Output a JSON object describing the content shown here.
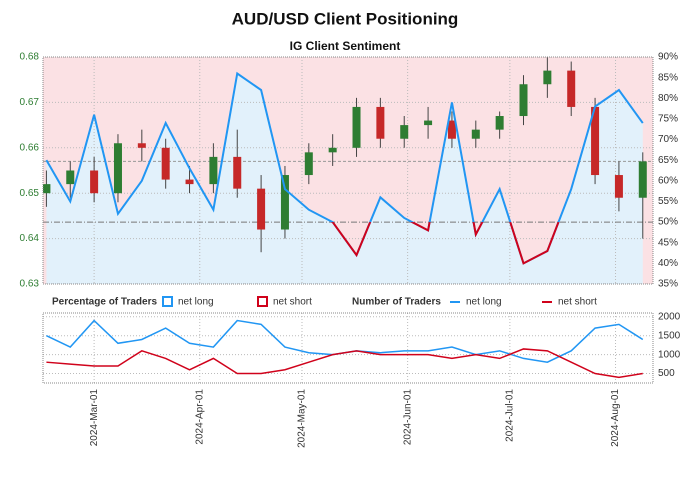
{
  "title": "AUD/USD Client Positioning",
  "chart_data": [
    {
      "type": "candlestick",
      "subtitle": "IG Client Sentiment",
      "x": [
        "2024-02-16",
        "2024-02-23",
        "2024-03-01",
        "2024-03-08",
        "2024-03-15",
        "2024-03-22",
        "2024-03-29",
        "2024-04-05",
        "2024-04-12",
        "2024-04-19",
        "2024-04-26",
        "2024-05-03",
        "2024-05-10",
        "2024-05-17",
        "2024-05-24",
        "2024-05-31",
        "2024-06-07",
        "2024-06-14",
        "2024-06-21",
        "2024-06-28",
        "2024-07-05",
        "2024-07-12",
        "2024-07-19",
        "2024-07-26",
        "2024-08-02",
        "2024-08-09"
      ],
      "open": [
        0.65,
        0.652,
        0.655,
        0.65,
        0.661,
        0.66,
        0.653,
        0.652,
        0.658,
        0.651,
        0.642,
        0.654,
        0.659,
        0.66,
        0.669,
        0.662,
        0.665,
        0.666,
        0.662,
        0.664,
        0.667,
        0.674,
        0.677,
        0.669,
        0.654,
        0.649
      ],
      "high": [
        0.655,
        0.657,
        0.658,
        0.663,
        0.664,
        0.662,
        0.656,
        0.661,
        0.664,
        0.654,
        0.656,
        0.661,
        0.663,
        0.671,
        0.671,
        0.667,
        0.669,
        0.668,
        0.666,
        0.668,
        0.676,
        0.68,
        0.679,
        0.671,
        0.657,
        0.659
      ],
      "low": [
        0.647,
        0.649,
        0.648,
        0.648,
        0.657,
        0.651,
        0.65,
        0.65,
        0.649,
        0.637,
        0.64,
        0.652,
        0.656,
        0.658,
        0.66,
        0.66,
        0.662,
        0.66,
        0.66,
        0.662,
        0.665,
        0.671,
        0.667,
        0.652,
        0.646,
        0.64
      ],
      "close": [
        0.652,
        0.655,
        0.65,
        0.661,
        0.66,
        0.653,
        0.652,
        0.658,
        0.651,
        0.642,
        0.654,
        0.659,
        0.66,
        0.669,
        0.662,
        0.665,
        0.666,
        0.662,
        0.664,
        0.667,
        0.674,
        0.677,
        0.669,
        0.654,
        0.649,
        0.657
      ],
      "up_color": "#2e7d32",
      "down_color": "#c62828",
      "xlim": [
        "2024-02-15",
        "2024-08-12"
      ],
      "ylim": [
        0.63,
        0.68
      ],
      "yticks": [
        0.63,
        0.64,
        0.65,
        0.66,
        0.67,
        0.68
      ],
      "y2lim": [
        35,
        90
      ],
      "y2ticks": [
        {
          "value": 35,
          "label": "35%"
        },
        {
          "value": 40,
          "label": "40%"
        },
        {
          "value": 45,
          "label": "45%"
        },
        {
          "value": 50,
          "label": "50%"
        },
        {
          "value": 55,
          "label": "55%"
        },
        {
          "value": 60,
          "label": "60%"
        },
        {
          "value": 65,
          "label": "65%"
        },
        {
          "value": 70,
          "label": "70%"
        },
        {
          "value": 75,
          "label": "75%"
        },
        {
          "value": 80,
          "label": "80%"
        },
        {
          "value": 85,
          "label": "85%"
        },
        {
          "value": 90,
          "label": "90%"
        }
      ],
      "threshold": 50,
      "reference_price": 0.657,
      "grid": true,
      "series": [
        {
          "name": "net long",
          "axis": "y2",
          "color": "#2196f3",
          "below_color": "#d0021b",
          "values": [
            65,
            55,
            76,
            52,
            60,
            74,
            63,
            53,
            86,
            82,
            58,
            53,
            50,
            42,
            56,
            51,
            48,
            79,
            47,
            58,
            40,
            43,
            58,
            78,
            82,
            74
          ]
        }
      ],
      "legend": {
        "title": "Percentage of Traders",
        "items": [
          {
            "name": "net long",
            "color": "#2196f3"
          },
          {
            "name": "net short",
            "color": "#d0021b"
          }
        ]
      }
    },
    {
      "type": "line",
      "x": [
        "2024-02-16",
        "2024-02-23",
        "2024-03-01",
        "2024-03-08",
        "2024-03-15",
        "2024-03-22",
        "2024-03-29",
        "2024-04-05",
        "2024-04-12",
        "2024-04-19",
        "2024-04-26",
        "2024-05-03",
        "2024-05-10",
        "2024-05-17",
        "2024-05-24",
        "2024-05-31",
        "2024-06-07",
        "2024-06-14",
        "2024-06-21",
        "2024-06-28",
        "2024-07-05",
        "2024-07-12",
        "2024-07-19",
        "2024-07-26",
        "2024-08-02",
        "2024-08-09"
      ],
      "xlim": [
        "2024-02-15",
        "2024-08-12"
      ],
      "xticks": [
        {
          "value": "2024-03-01",
          "label": "2024-Mar-01"
        },
        {
          "value": "2024-04-01",
          "label": "2024-Apr-01"
        },
        {
          "value": "2024-05-01",
          "label": "2024-May-01"
        },
        {
          "value": "2024-06-01",
          "label": "2024-Jun-01"
        },
        {
          "value": "2024-07-01",
          "label": "2024-Jul-01"
        },
        {
          "value": "2024-08-01",
          "label": "2024-Aug-01"
        }
      ],
      "ylim": [
        250,
        2100
      ],
      "yticks": [
        500,
        1000,
        1500,
        2000
      ],
      "grid": true,
      "legend_title": "Number of Traders",
      "series": [
        {
          "name": "net long",
          "color": "#2196f3",
          "values": [
            1500,
            1200,
            1900,
            1300,
            1400,
            1700,
            1300,
            1200,
            1900,
            1800,
            1200,
            1050,
            1000,
            1100,
            1050,
            1100,
            1100,
            1200,
            1000,
            1100,
            900,
            800,
            1100,
            1700,
            1800,
            1400
          ]
        },
        {
          "name": "net short",
          "color": "#d0021b",
          "values": [
            800,
            750,
            700,
            700,
            1100,
            900,
            600,
            900,
            500,
            500,
            600,
            800,
            1000,
            1100,
            1000,
            1000,
            1000,
            900,
            1000,
            900,
            1150,
            1100,
            800,
            500,
            400,
            500
          ]
        }
      ]
    }
  ]
}
